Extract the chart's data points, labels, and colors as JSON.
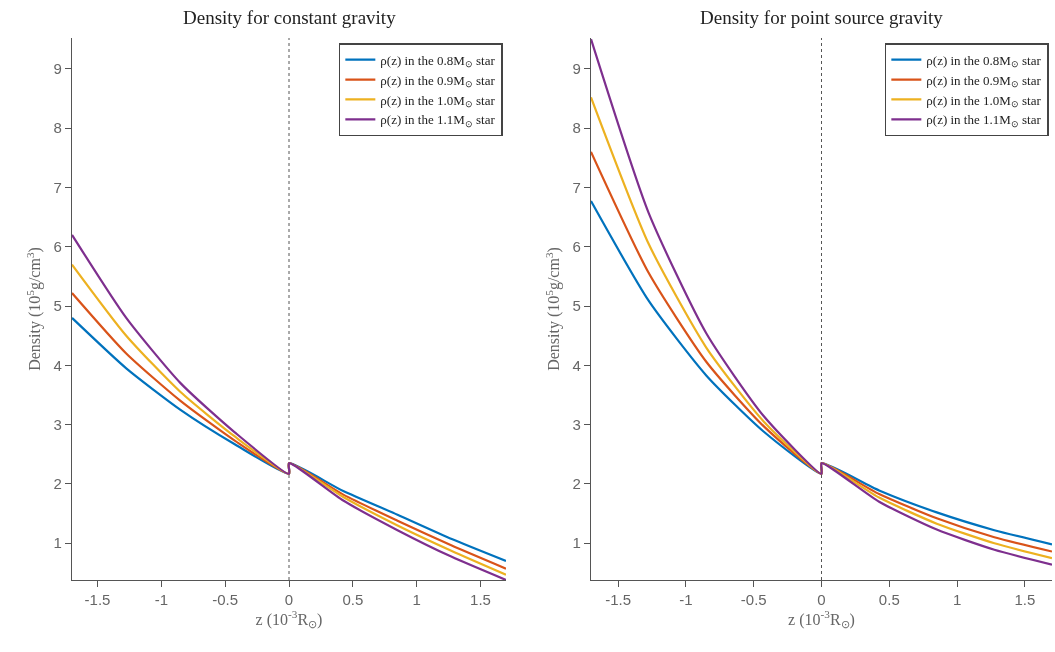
{
  "chart_data": [
    {
      "type": "line",
      "title": "Density for constant gravity",
      "xlabel": "z (10$^{-3}$R$_{⊙}$)",
      "ylabel": "Density (10$^{5}$g/cm$^{3}$)",
      "x": [
        -1.7,
        -1.275,
        -0.85,
        -0.425,
        0,
        0,
        0.425,
        0.85,
        1.275,
        1.7
      ],
      "xlim": [
        -1.7,
        1.7
      ],
      "xticks": [
        -1.5,
        -1,
        -0.5,
        0,
        0.5,
        1,
        1.5
      ],
      "ylim": [
        0.38,
        9.52
      ],
      "yticks": [
        1,
        2,
        3,
        4,
        5,
        6,
        7,
        8,
        9
      ],
      "legend": "top right",
      "ref_lines": [
        {
          "axis": "x",
          "value": 0,
          "color": "#555555",
          "line_style": "dotted"
        }
      ],
      "series": [
        {
          "name": "ρ(z) in the 0.8M$_{⊙}$ star",
          "color": "#0072bd",
          "values": [
            4.8,
            3.95,
            3.25,
            2.67,
            2.17,
            2.35,
            1.88,
            1.48,
            1.07,
            0.7
          ]
        },
        {
          "name": "ρ(z) in the 0.9M$_{⊙}$ star",
          "color": "#d95319",
          "values": [
            5.22,
            4.2,
            3.4,
            2.73,
            2.17,
            2.35,
            1.82,
            1.38,
            0.96,
            0.57
          ]
        },
        {
          "name": "ρ(z) in the 1.0M$_{⊙}$ star",
          "color": "#edb120",
          "values": [
            5.7,
            4.5,
            3.55,
            2.8,
            2.17,
            2.35,
            1.78,
            1.3,
            0.87,
            0.47
          ]
        },
        {
          "name": "ρ(z) in the 1.1M$_{⊙}$ star",
          "color": "#7e2f8e",
          "values": [
            6.2,
            4.8,
            3.7,
            2.87,
            2.17,
            2.35,
            1.72,
            1.22,
            0.77,
            0.38
          ]
        }
      ]
    },
    {
      "type": "line",
      "title": "Density for point source gravity",
      "xlabel": "z (10$^{-3}$R$_{⊙}$)",
      "ylabel": "Density (10$^{5}$g/cm$^{3}$)",
      "x": [
        -1.7,
        -1.275,
        -0.85,
        -0.425,
        0,
        0,
        0.425,
        0.85,
        1.275,
        1.7
      ],
      "xlim": [
        -1.7,
        1.7
      ],
      "xticks": [
        -1.5,
        -1,
        -0.5,
        0,
        0.5,
        1,
        1.5
      ],
      "ylim": [
        0.38,
        9.52
      ],
      "yticks": [
        1,
        2,
        3,
        4,
        5,
        6,
        7,
        8,
        9
      ],
      "legend": "top right",
      "ref_lines": [
        {
          "axis": "x",
          "value": 0,
          "color": "#555555",
          "line_style": "dotted"
        }
      ],
      "series": [
        {
          "name": "ρ(z) in the 0.8M$_{⊙}$ star",
          "color": "#0072bd",
          "values": [
            6.77,
            5.09,
            3.83,
            2.88,
            2.17,
            2.35,
            1.89,
            1.52,
            1.22,
            0.98
          ]
        },
        {
          "name": "ρ(z) in the 0.9M$_{⊙}$ star",
          "color": "#d95319",
          "values": [
            7.6,
            5.56,
            4.06,
            2.97,
            2.17,
            2.35,
            1.83,
            1.42,
            1.1,
            0.86
          ]
        },
        {
          "name": "ρ(z) in the 1.0M$_{⊙}$ star",
          "color": "#edb120",
          "values": [
            8.52,
            6.05,
            4.3,
            3.05,
            2.17,
            2.35,
            1.77,
            1.33,
            1.0,
            0.75
          ]
        },
        {
          "name": "ρ(z) in the 1.1M$_{⊙}$ star",
          "color": "#7e2f8e",
          "values": [
            9.5,
            6.57,
            4.54,
            3.14,
            2.17,
            2.35,
            1.7,
            1.23,
            0.89,
            0.64
          ]
        }
      ]
    }
  ]
}
